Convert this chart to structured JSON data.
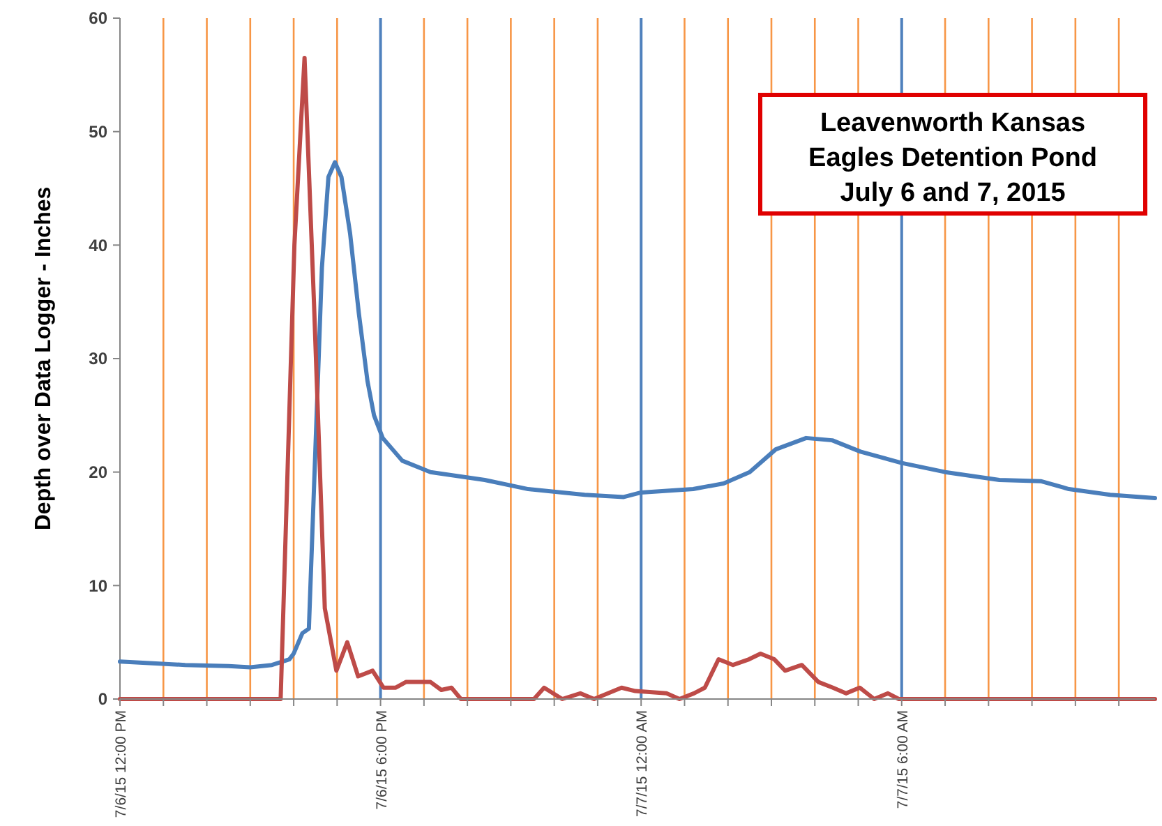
{
  "chart_data": {
    "type": "line",
    "title": "Leavenworth Kansas\nEagles Detention Pond\nJuly 6 and 7, 2015",
    "ylabel": "Depth over Data Logger - Inches",
    "xlim": [
      "2015-07-06T12:00",
      "2015-07-07T11:50"
    ],
    "ylim": [
      0,
      60
    ],
    "yticks": [
      0,
      10,
      20,
      30,
      40,
      50,
      60
    ],
    "xticks": [
      {
        "value": "2015-07-06T12:00",
        "label": "7/6/15 12:00 PM"
      },
      {
        "value": "2015-07-06T13:00",
        "label": null
      },
      {
        "value": "2015-07-06T14:00",
        "label": null
      },
      {
        "value": "2015-07-06T15:00",
        "label": null
      },
      {
        "value": "2015-07-06T16:00",
        "label": null
      },
      {
        "value": "2015-07-06T17:00",
        "label": null
      },
      {
        "value": "2015-07-06T18:00",
        "label": "7/6/15 6:00 PM"
      },
      {
        "value": "2015-07-06T19:00",
        "label": null
      },
      {
        "value": "2015-07-06T20:00",
        "label": null
      },
      {
        "value": "2015-07-06T21:00",
        "label": null
      },
      {
        "value": "2015-07-06T22:00",
        "label": null
      },
      {
        "value": "2015-07-06T23:00",
        "label": null
      },
      {
        "value": "2015-07-07T00:00",
        "label": "7/7/15 12:00 AM"
      },
      {
        "value": "2015-07-07T01:00",
        "label": null
      },
      {
        "value": "2015-07-07T02:00",
        "label": null
      },
      {
        "value": "2015-07-07T03:00",
        "label": null
      },
      {
        "value": "2015-07-07T04:00",
        "label": null
      },
      {
        "value": "2015-07-07T05:00",
        "label": null
      },
      {
        "value": "2015-07-07T06:00",
        "label": "7/7/15 6:00 AM"
      },
      {
        "value": "2015-07-07T07:00",
        "label": null
      },
      {
        "value": "2015-07-07T08:00",
        "label": null
      },
      {
        "value": "2015-07-07T09:00",
        "label": null
      },
      {
        "value": "2015-07-07T10:00",
        "label": null
      },
      {
        "value": "2015-07-07T11:00",
        "label": null
      }
    ],
    "grid": "x",
    "marker": "none",
    "line_style": "solid",
    "series": [
      {
        "color": "#4a7ebb",
        "x": [
          "2015-07-06T12:00",
          "2015-07-06T13:30",
          "2015-07-06T14:30",
          "2015-07-06T15:00",
          "2015-07-06T15:30",
          "2015-07-06T15:54",
          "2015-07-06T16:00",
          "2015-07-06T16:12",
          "2015-07-06T16:21",
          "2015-07-06T16:30",
          "2015-07-06T16:39",
          "2015-07-06T16:48",
          "2015-07-06T16:57",
          "2015-07-06T17:06",
          "2015-07-06T17:18",
          "2015-07-06T17:30",
          "2015-07-06T17:42",
          "2015-07-06T17:51",
          "2015-07-06T18:03",
          "2015-07-06T18:30",
          "2015-07-06T19:09",
          "2015-07-06T20:24",
          "2015-07-06T21:24",
          "2015-07-06T22:42",
          "2015-07-06T23:36",
          "2015-07-07T00:00",
          "2015-07-07T01:12",
          "2015-07-07T01:54",
          "2015-07-07T02:30",
          "2015-07-07T03:06",
          "2015-07-07T03:48",
          "2015-07-07T04:24",
          "2015-07-07T05:03",
          "2015-07-07T06:00",
          "2015-07-07T07:00",
          "2015-07-07T08:15",
          "2015-07-07T09:12",
          "2015-07-07T09:51",
          "2015-07-07T10:48",
          "2015-07-07T11:50"
        ],
        "values": [
          3.3,
          3,
          2.9,
          2.8,
          3,
          3.5,
          4,
          5.8,
          6.2,
          22,
          38,
          46,
          47.3,
          46,
          41,
          34,
          28,
          25,
          23,
          21,
          20,
          19.3,
          18.5,
          18,
          17.8,
          18.2,
          18.5,
          19,
          20,
          22,
          23,
          22.8,
          21.8,
          20.8,
          20,
          19.3,
          19.2,
          18.5,
          18,
          17.7
        ]
      },
      {
        "color": "#be4b48",
        "x": [
          "2015-07-06T12:00",
          "2015-07-06T15:42",
          "2015-07-06T16:01",
          "2015-07-06T16:15",
          "2015-07-06T16:28",
          "2015-07-06T16:43",
          "2015-07-06T16:59",
          "2015-07-06T17:14",
          "2015-07-06T17:29",
          "2015-07-06T17:49",
          "2015-07-06T18:04",
          "2015-07-06T18:21",
          "2015-07-06T18:35",
          "2015-07-06T19:09",
          "2015-07-06T19:24",
          "2015-07-06T19:38",
          "2015-07-06T19:51",
          "2015-07-06T21:32",
          "2015-07-06T21:46",
          "2015-07-06T22:11",
          "2015-07-06T22:36",
          "2015-07-06T22:55",
          "2015-07-06T23:33",
          "2015-07-06T23:52",
          "2015-07-07T00:35",
          "2015-07-07T00:53",
          "2015-07-07T01:13",
          "2015-07-07T01:28",
          "2015-07-07T01:47",
          "2015-07-07T02:07",
          "2015-07-07T02:29",
          "2015-07-07T02:45",
          "2015-07-07T03:04",
          "2015-07-07T03:19",
          "2015-07-07T03:42",
          "2015-07-07T04:05",
          "2015-07-07T04:25",
          "2015-07-07T04:43",
          "2015-07-07T05:02",
          "2015-07-07T05:22",
          "2015-07-07T05:41",
          "2015-07-07T05:56",
          "2015-07-07T11:50"
        ],
        "values": [
          0,
          0,
          40,
          56.5,
          35,
          8,
          2.5,
          5,
          2,
          2.5,
          1,
          1,
          1.5,
          1.5,
          0.8,
          1,
          0,
          0,
          1,
          0,
          0.5,
          0,
          1,
          0.7,
          0.5,
          0,
          0.5,
          1,
          3.5,
          3,
          3.5,
          4,
          3.5,
          2.5,
          3,
          1.5,
          1,
          0.5,
          1,
          0,
          0.5,
          0,
          0
        ]
      }
    ]
  }
}
